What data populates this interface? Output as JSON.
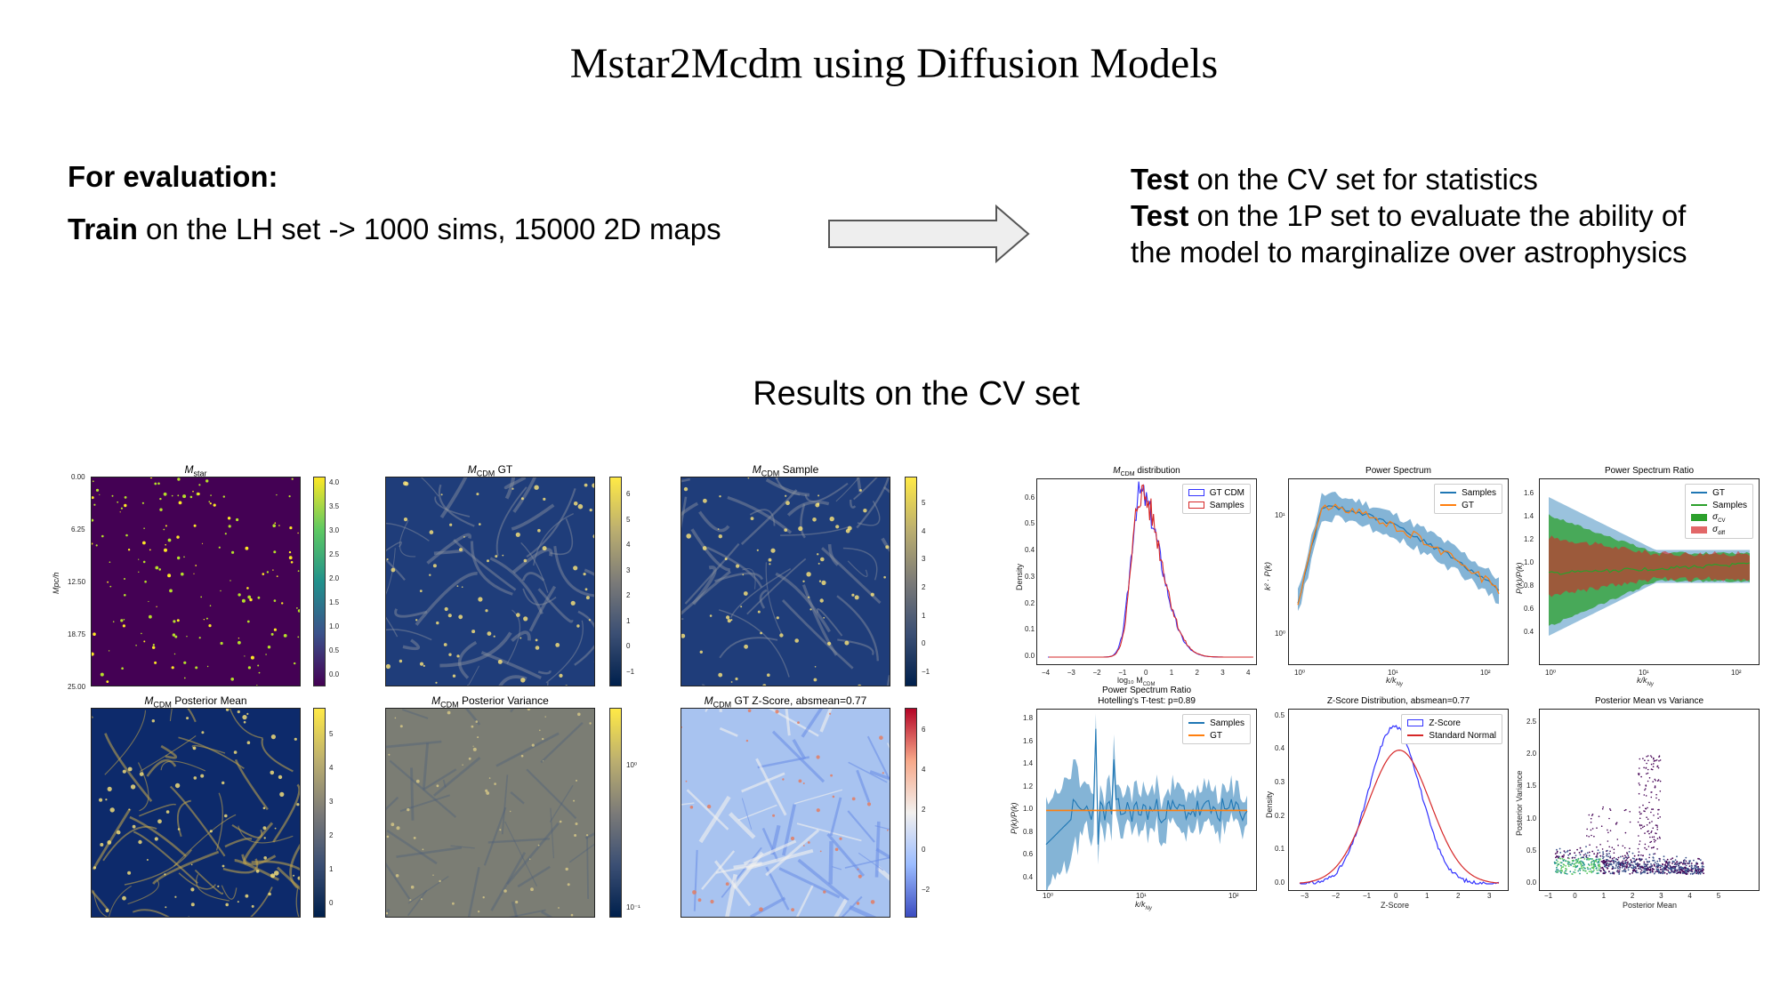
{
  "title": "Mstar2Mcdm using Diffusion Models",
  "left": {
    "heading": "For evaluation:",
    "train_bold": "Train",
    "train_rest": " on the LH set -> 1000 sims, 15000 2D maps"
  },
  "right": {
    "test1_bold": "Test",
    "test1_rest": " on the CV set for statistics",
    "test2_bold": "Test",
    "test2_rest": " on the 1P set to evaluate the ability of the model to marginalize over astrophysics"
  },
  "results_title": "Results on the CV set",
  "maps": {
    "mstar_title": "M",
    "mstar_sub": "star",
    "gt_title_sub": "CDM",
    "gt_title_rest": " GT",
    "sample_title_rest": " Sample",
    "post_mean_rest": " Posterior Mean",
    "post_var_rest": " Posterior Variance",
    "zscore_rest": " GT Z-Score, absmean=0.77",
    "ylabel": "Mpc/h",
    "yticks": [
      "0.00",
      "6.25",
      "12.50",
      "18.75",
      "25.00"
    ],
    "cbar_mstar": [
      "4.0",
      "3.5",
      "3.0",
      "2.5",
      "2.0",
      "1.5",
      "1.0",
      "0.5",
      "0.0"
    ],
    "cbar_gt": [
      "6",
      "5",
      "4",
      "3",
      "2",
      "1",
      "0",
      "−1"
    ],
    "cbar_sample": [
      "5",
      "4",
      "3",
      "2",
      "1",
      "0",
      "−1"
    ],
    "cbar_mean": [
      "5",
      "4",
      "3",
      "2",
      "1",
      "0"
    ],
    "cbar_var": [
      "10⁰",
      "10⁻¹"
    ],
    "cbar_z": [
      "6",
      "4",
      "2",
      "0",
      "−2"
    ]
  },
  "plots": {
    "dist": {
      "title_rest": " distribution",
      "legend": [
        "GT CDM",
        "Samples"
      ],
      "ylabel": "Density",
      "xlabel": "log₁₀ M",
      "xticks": [
        "−4",
        "−3",
        "−2",
        "−1",
        "0",
        "1",
        "2",
        "3",
        "4"
      ],
      "yticks": [
        "0.6",
        "0.5",
        "0.4",
        "0.3",
        "0.2",
        "0.1",
        "0.0"
      ]
    },
    "ps": {
      "title": "Power Spectrum",
      "legend": [
        "Samples",
        "GT"
      ],
      "ylabel": "k² · P(k)",
      "xlabel": "k/k",
      "xticks": [
        "10⁰",
        "10¹",
        "10²"
      ],
      "yticks": [
        "10¹",
        "10⁰"
      ]
    },
    "psr": {
      "title": "Power Spectrum Ratio",
      "legend": [
        "GT",
        "Samples",
        "σ",
        "σ"
      ],
      "legend_subs": [
        "CV",
        "diff"
      ],
      "ylabel": "P(k)/P(k)",
      "xlabel": "k/k",
      "xticks": [
        "10⁰",
        "10¹",
        "10²"
      ],
      "yticks": [
        "1.6",
        "1.4",
        "1.2",
        "1.0",
        "0.8",
        "0.6",
        "0.4"
      ]
    },
    "hot": {
      "title": "Power Spectrum Ratio",
      "subtitle": "Hotelling's T-test: p=0.89",
      "legend": [
        "Samples",
        "GT"
      ],
      "ylabel": "P(k)/P(k)",
      "xlabel": "k/k",
      "xticks": [
        "10⁰",
        "10¹",
        "10²"
      ],
      "yticks": [
        "1.8",
        "1.6",
        "1.4",
        "1.2",
        "1.0",
        "0.8",
        "0.6",
        "0.4"
      ]
    },
    "zdist": {
      "title": "Z-Score Distribution, absmean=0.77",
      "legend": [
        "Z-Score",
        "Standard Normal"
      ],
      "ylabel": "Density",
      "xlabel": "Z-Score",
      "xticks": [
        "−3",
        "−2",
        "−1",
        "0",
        "1",
        "2",
        "3"
      ],
      "yticks": [
        "0.5",
        "0.4",
        "0.3",
        "0.2",
        "0.1",
        "0.0"
      ]
    },
    "pmv": {
      "title": "Posterior Mean vs Variance",
      "ylabel": "Posterior Variance",
      "xlabel": "Posterior Mean",
      "xticks": [
        "−1",
        "0",
        "1",
        "2",
        "3",
        "4",
        "5"
      ],
      "yticks": [
        "2.5",
        "2.0",
        "1.5",
        "1.0",
        "0.5",
        "0.0"
      ]
    }
  },
  "colors": {
    "blue": "#1f77b4",
    "orange": "#ff7f0e",
    "red": "#d62728",
    "green": "#2ca02c",
    "hist_blue": "#3333ff"
  }
}
